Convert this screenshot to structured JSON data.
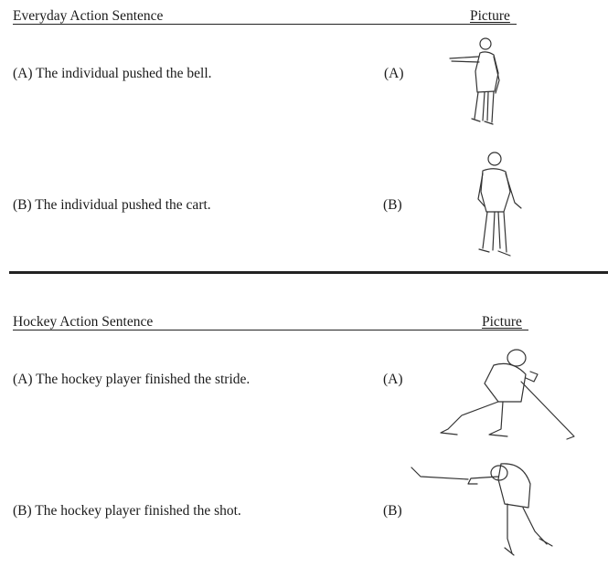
{
  "sections": [
    {
      "header": {
        "sentence": "Everyday Action Sentence",
        "picture": "Picture"
      },
      "rows": [
        {
          "sentence": "(A) The individual pushed the bell.",
          "label": "(A)"
        },
        {
          "sentence": "(B) The individual pushed the cart.",
          "label": "(B)"
        }
      ]
    },
    {
      "header": {
        "sentence": "Hockey Action Sentence",
        "picture": "Picture"
      },
      "rows": [
        {
          "sentence": "(A) The hockey player finished the stride.",
          "label": "(A)"
        },
        {
          "sentence": "(B) The hockey player finished the shot.",
          "label": "(B)"
        }
      ]
    }
  ]
}
